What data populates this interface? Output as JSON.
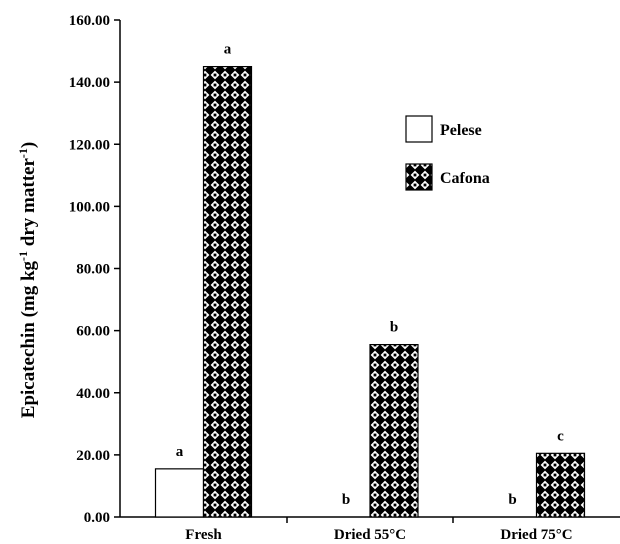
{
  "chart_data": {
    "type": "bar",
    "title": "",
    "ylabel": "Epicatechin (mg kg-1 dry matter-1)",
    "ylabel_parts": [
      {
        "text": "Epicatechin (mg kg",
        "sup": false
      },
      {
        "text": "-1",
        "sup": true
      },
      {
        "text": " dry matter",
        "sup": false
      },
      {
        "text": "-1",
        "sup": true
      },
      {
        "text": ")",
        "sup": false
      }
    ],
    "xlabel": "",
    "ylim": [
      0,
      160
    ],
    "yticks": [
      "0.00",
      "20.00",
      "40.00",
      "60.00",
      "80.00",
      "100.00",
      "120.00",
      "140.00",
      "160.00"
    ],
    "categories": [
      "Fresh",
      "Dried 55°C",
      "Dried 75°C"
    ],
    "series": [
      {
        "name": "Pelese",
        "values": [
          15.5,
          0,
          0
        ],
        "labels": [
          "a",
          "b",
          "b"
        ],
        "fill": "white"
      },
      {
        "name": "Cafona",
        "values": [
          145,
          55.5,
          20.5
        ],
        "labels": [
          "a",
          "b",
          "c"
        ],
        "fill": "pattern"
      }
    ],
    "legend_position": "upper-right",
    "grid": false
  }
}
